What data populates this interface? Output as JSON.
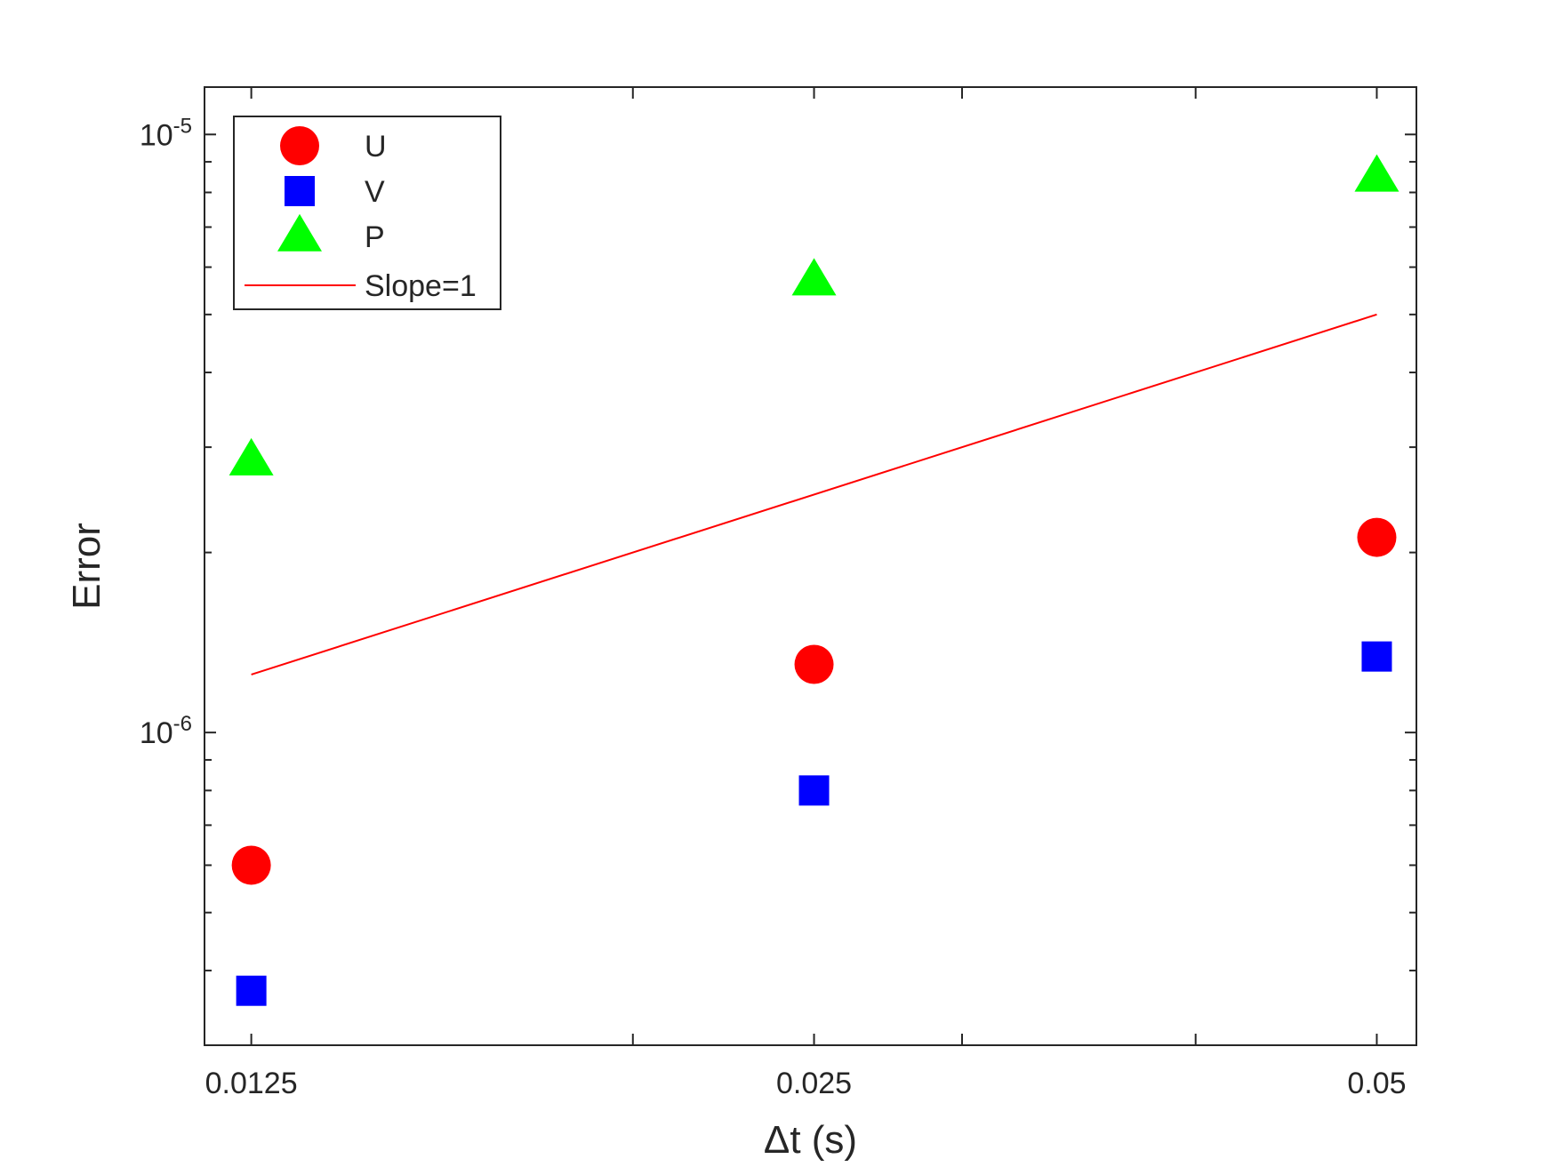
{
  "chart_data": {
    "type": "scatter",
    "title": "",
    "xlabel": "Δt (s)",
    "ylabel": "Error",
    "x_scale": "log",
    "y_scale": "log",
    "xlim": [
      0.0118,
      0.0525
    ],
    "ylim": [
      3e-07,
      1.2e-05
    ],
    "x_ticks": [
      0.0125,
      0.025,
      0.05
    ],
    "x_tick_labels": [
      "0.0125",
      "0.025",
      "0.05"
    ],
    "y_ticks": [
      1e-06,
      1e-05
    ],
    "y_tick_labels": [
      {
        "base": "10",
        "exp": "-6"
      },
      {
        "base": "10",
        "exp": "-5"
      }
    ],
    "grid": false,
    "legend_position": "top-left",
    "series": [
      {
        "name": "U",
        "marker": "circle",
        "color": "#ff0000",
        "x": [
          0.0125,
          0.025,
          0.05
        ],
        "y": [
          6e-07,
          1.3e-06,
          2.12e-06
        ]
      },
      {
        "name": "V",
        "marker": "square",
        "color": "#0000ff",
        "x": [
          0.0125,
          0.025,
          0.05
        ],
        "y": [
          3.7e-07,
          8e-07,
          1.34e-06
        ]
      },
      {
        "name": "P",
        "marker": "triangle",
        "color": "#00ff00",
        "x": [
          0.0125,
          0.025,
          0.05
        ],
        "y": [
          2.85e-06,
          5.7e-06,
          8.5e-06
        ]
      },
      {
        "name": "Slope=1",
        "marker": "line",
        "color": "#ff0000",
        "x": [
          0.0125,
          0.05
        ],
        "y": [
          1.25e-06,
          5e-06
        ]
      }
    ]
  }
}
